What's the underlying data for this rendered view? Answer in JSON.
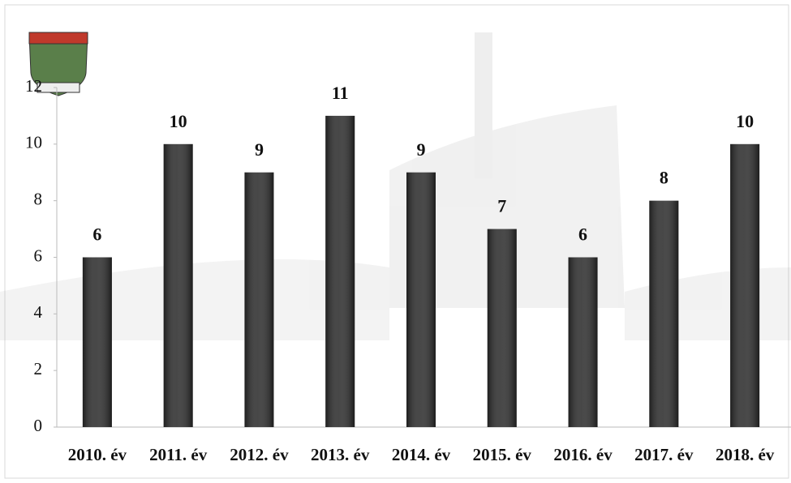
{
  "chart_data": {
    "type": "bar",
    "categories": [
      "2010. év",
      "2011. év",
      "2012. év",
      "2013. év",
      "2014. év",
      "2015. év",
      "2016. év",
      "2017. év",
      "2018. év"
    ],
    "values": [
      6,
      10,
      9,
      11,
      9,
      7,
      6,
      8,
      10
    ],
    "color": "#2e2e2e",
    "ylim": [
      0,
      12
    ],
    "yticks": [
      0,
      2,
      4,
      6,
      8,
      10,
      12
    ],
    "grid": false
  }
}
